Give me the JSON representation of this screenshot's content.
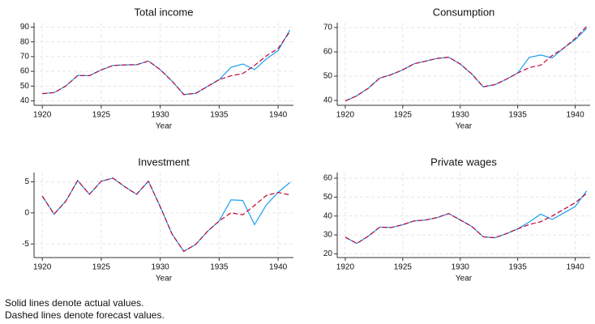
{
  "chart_data": [
    {
      "type": "line",
      "title": "Total income",
      "x_label": "Year",
      "x": [
        1920,
        1921,
        1922,
        1923,
        1924,
        1925,
        1926,
        1927,
        1928,
        1929,
        1930,
        1931,
        1932,
        1933,
        1934,
        1935,
        1936,
        1937,
        1938,
        1939,
        1940,
        1941
      ],
      "series": [
        {
          "color": "#1a9ff0",
          "linestyle": "solid",
          "values": [
            44.9,
            45.6,
            50.1,
            57.2,
            57.1,
            61.0,
            64.0,
            64.4,
            64.5,
            67.0,
            61.2,
            53.4,
            44.3,
            45.1,
            49.7,
            54.4,
            62.7,
            65.0,
            61.2,
            68.4,
            74.1,
            88.1
          ]
        },
        {
          "color": "#c10534",
          "linestyle": "dashed",
          "values": [
            44.9,
            45.6,
            50.1,
            57.2,
            57.1,
            61.0,
            64.0,
            64.4,
            64.5,
            67.0,
            61.2,
            53.4,
            44.3,
            45.1,
            49.7,
            54.4,
            57.0,
            58.5,
            64.0,
            70.5,
            75.5,
            87.0
          ]
        }
      ],
      "xlim": [
        1919.3,
        1941.3
      ],
      "xticks": [
        1920,
        1925,
        1930,
        1935,
        1940
      ],
      "ylim": [
        37,
        93
      ],
      "yticks": [
        40,
        50,
        60,
        70,
        80,
        90
      ],
      "grid": true
    },
    {
      "type": "line",
      "title": "Consumption",
      "x_label": "Year",
      "x": [
        1920,
        1921,
        1922,
        1923,
        1924,
        1925,
        1926,
        1927,
        1928,
        1929,
        1930,
        1931,
        1932,
        1933,
        1934,
        1935,
        1936,
        1937,
        1938,
        1939,
        1940,
        1941
      ],
      "series": [
        {
          "color": "#1a9ff0",
          "linestyle": "solid",
          "values": [
            39.8,
            41.9,
            45.0,
            49.2,
            50.6,
            52.6,
            55.1,
            56.2,
            57.3,
            57.8,
            55.0,
            50.9,
            45.6,
            46.5,
            48.7,
            51.3,
            57.7,
            58.7,
            57.5,
            61.6,
            65.0,
            69.7
          ]
        },
        {
          "color": "#c10534",
          "linestyle": "dashed",
          "values": [
            39.8,
            41.9,
            45.0,
            49.2,
            50.6,
            52.6,
            55.1,
            56.2,
            57.3,
            57.8,
            55.0,
            50.9,
            45.6,
            46.5,
            48.7,
            51.3,
            53.5,
            54.5,
            58.5,
            61.5,
            65.5,
            70.5
          ]
        }
      ],
      "xlim": [
        1919.3,
        1941.3
      ],
      "xticks": [
        1920,
        1925,
        1930,
        1935,
        1940
      ],
      "ylim": [
        38,
        72
      ],
      "yticks": [
        40,
        50,
        60,
        70
      ],
      "grid": true
    },
    {
      "type": "line",
      "title": "Investment",
      "x_label": "Year",
      "x": [
        1920,
        1921,
        1922,
        1923,
        1924,
        1925,
        1926,
        1927,
        1928,
        1929,
        1930,
        1931,
        1932,
        1933,
        1934,
        1935,
        1936,
        1937,
        1938,
        1939,
        1940,
        1941
      ],
      "series": [
        {
          "color": "#1a9ff0",
          "linestyle": "solid",
          "values": [
            2.7,
            -0.2,
            1.9,
            5.2,
            3.0,
            5.1,
            5.6,
            4.2,
            3.0,
            5.1,
            1.0,
            -3.4,
            -6.2,
            -5.1,
            -3.0,
            -1.3,
            2.1,
            2.0,
            -1.9,
            1.3,
            3.3,
            4.9
          ]
        },
        {
          "color": "#c10534",
          "linestyle": "dashed",
          "values": [
            2.7,
            -0.2,
            1.9,
            5.2,
            3.0,
            5.1,
            5.6,
            4.2,
            3.0,
            5.1,
            1.0,
            -3.4,
            -6.2,
            -5.1,
            -3.0,
            -1.3,
            0.0,
            -0.3,
            1.2,
            2.8,
            3.3,
            2.9
          ]
        }
      ],
      "xlim": [
        1919.3,
        1941.3
      ],
      "xticks": [
        1920,
        1925,
        1930,
        1935,
        1940
      ],
      "ylim": [
        -7.2,
        6.5
      ],
      "yticks": [
        -5,
        0,
        5
      ],
      "grid": true
    },
    {
      "type": "line",
      "title": "Private wages",
      "x_label": "Year",
      "x": [
        1920,
        1921,
        1922,
        1923,
        1924,
        1925,
        1926,
        1927,
        1928,
        1929,
        1930,
        1931,
        1932,
        1933,
        1934,
        1935,
        1936,
        1937,
        1938,
        1939,
        1940,
        1941
      ],
      "series": [
        {
          "color": "#1a9ff0",
          "linestyle": "solid",
          "values": [
            28.8,
            25.5,
            29.3,
            34.1,
            33.9,
            35.4,
            37.4,
            37.9,
            39.2,
            41.3,
            37.9,
            34.5,
            29.0,
            28.5,
            30.6,
            33.2,
            36.8,
            41.0,
            38.2,
            41.6,
            45.0,
            53.3
          ]
        },
        {
          "color": "#c10534",
          "linestyle": "dashed",
          "values": [
            28.8,
            25.5,
            29.3,
            34.1,
            33.9,
            35.4,
            37.4,
            37.9,
            39.2,
            41.3,
            37.9,
            34.5,
            29.0,
            28.5,
            30.6,
            33.2,
            35.5,
            37.0,
            40.0,
            43.5,
            47.0,
            52.0
          ]
        }
      ],
      "xlim": [
        1919.3,
        1941.3
      ],
      "xticks": [
        1920,
        1925,
        1930,
        1935,
        1940
      ],
      "ylim": [
        18,
        63
      ],
      "yticks": [
        20,
        30,
        40,
        50,
        60
      ],
      "grid": true
    }
  ],
  "notes": [
    "Solid lines denote actual values.",
    "Dashed lines denote forecast values."
  ]
}
